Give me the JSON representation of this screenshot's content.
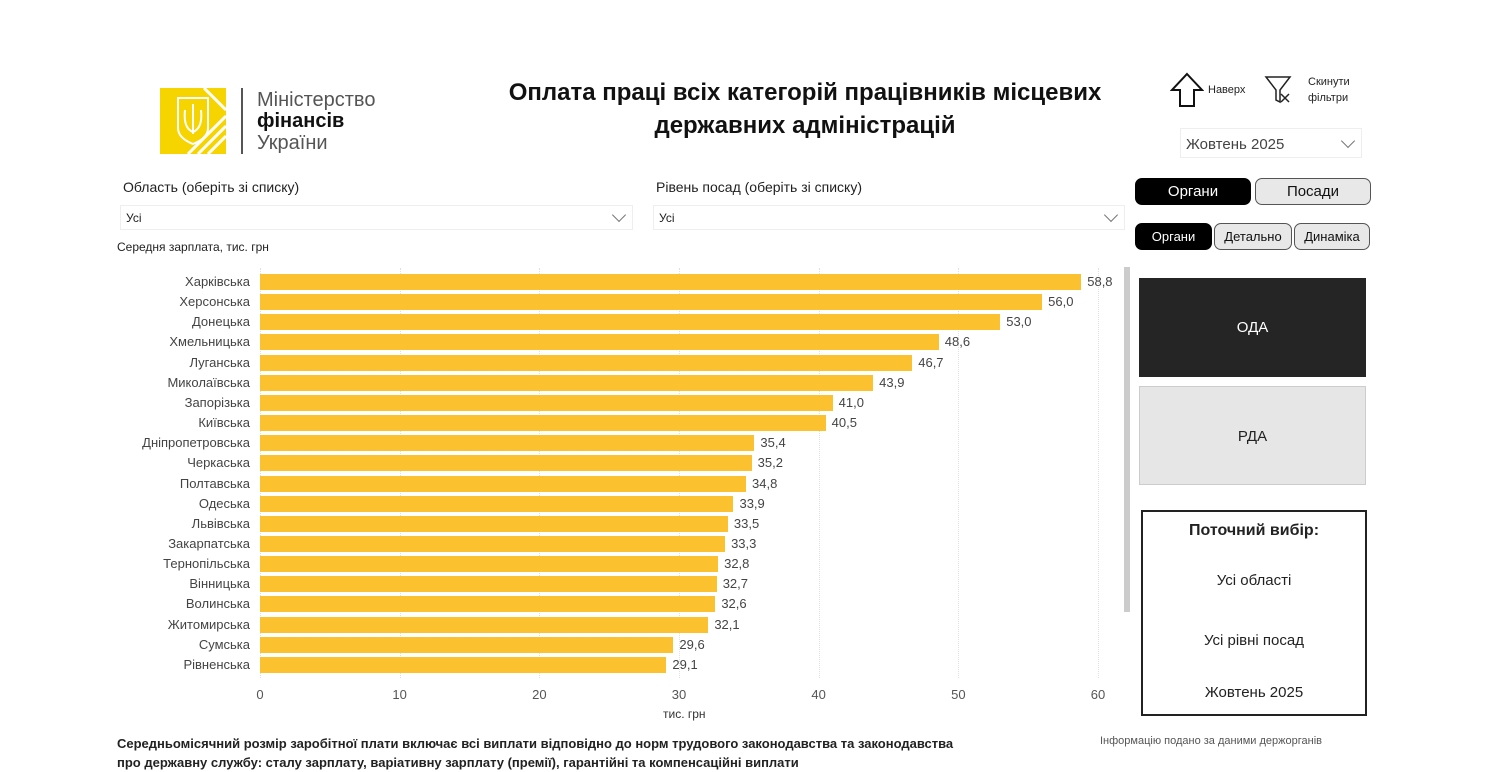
{
  "logo": {
    "line1": "Міністерство",
    "line2": "фінансів",
    "line3": "України"
  },
  "title": "Оплата праці всіх категорій працівників місцевих державних адміністрацій",
  "nav": {
    "up_label": "Наверх",
    "reset_label_1": "Скинути",
    "reset_label_2": "фільтри"
  },
  "period_select": {
    "value": "Жовтень 2025"
  },
  "filters": {
    "region": {
      "label": "Область (оберіть зі списку)",
      "value": "Усі"
    },
    "level": {
      "label": "Рівень посад (оберіть зі списку)",
      "value": "Усі"
    }
  },
  "toggle1": [
    {
      "label": "Органи",
      "active": true
    },
    {
      "label": "Посади",
      "active": false
    }
  ],
  "toggle2": [
    {
      "label": "Органи",
      "active": true
    },
    {
      "label": "Детально",
      "active": false
    },
    {
      "label": "Динаміка",
      "active": false
    }
  ],
  "tiles": [
    {
      "label": "ОДА",
      "selected": true
    },
    {
      "label": "РДА",
      "selected": false
    }
  ],
  "current": {
    "title": "Поточний вибір:",
    "region": "Усі області",
    "level": "Усі рівні посад",
    "period": "Жовтень 2025"
  },
  "footnote": {
    "line1": "Середньомісячний розмір заробітної плати включає всі виплати відповідно до норм трудового законодавства та законодавства",
    "line2": "про державну службу: сталу зарплату, варіативну зарплату (премії), гарантійні та компенсаційні виплати",
    "source": "Інформацію подано за даними держорганів"
  },
  "chart_data": {
    "type": "bar",
    "orientation": "horizontal",
    "title": "Середня зарплата, тис. грн",
    "xlabel": "тис. грн",
    "xlim": [
      0,
      60
    ],
    "xticks": [
      0,
      10,
      20,
      30,
      40,
      50,
      60
    ],
    "bar_color": "#fcc12e",
    "categories": [
      "Харківська",
      "Херсонська",
      "Донецька",
      "Хмельницька",
      "Луганська",
      "Миколаївська",
      "Запорізька",
      "Київська",
      "Дніпропетровська",
      "Черкаська",
      "Полтавська",
      "Одеська",
      "Львівська",
      "Закарпатська",
      "Тернопільська",
      "Вінницька",
      "Волинська",
      "Житомирська",
      "Сумська",
      "Рівненська"
    ],
    "values": [
      58.8,
      56.0,
      53.0,
      48.6,
      46.7,
      43.9,
      41.0,
      40.5,
      35.4,
      35.2,
      34.8,
      33.9,
      33.5,
      33.3,
      32.8,
      32.7,
      32.6,
      32.1,
      29.6,
      29.1
    ],
    "labels": [
      "58,8",
      "56,0",
      "53,0",
      "48,6",
      "46,7",
      "43,9",
      "41,0",
      "40,5",
      "35,4",
      "35,2",
      "34,8",
      "33,9",
      "33,5",
      "33,3",
      "32,8",
      "32,7",
      "32,6",
      "32,1",
      "29,6",
      "29,1"
    ]
  }
}
